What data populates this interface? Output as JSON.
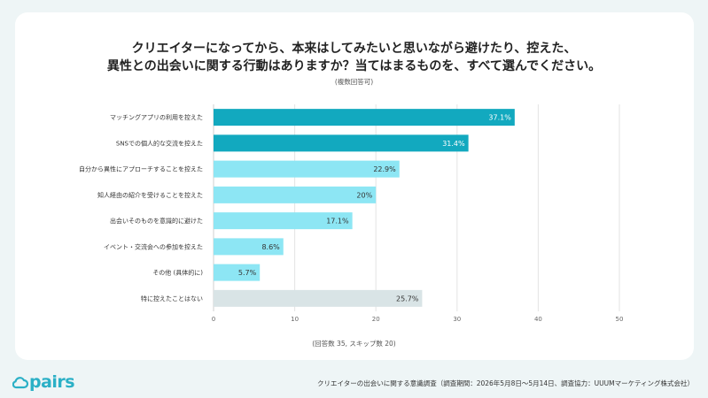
{
  "title_line1": "クリエイターになってから、本来はしてみたいと思いながら避けたり、控えた、",
  "title_line2": "異性との出会いに関する行動はありますか？当てはまるものを、すべて選んでください。",
  "subtitle": "(複数回答可)",
  "response_note": "(回答数 35, スキップ数 20)",
  "brand": "pairs",
  "footer": "クリエイターの出会いに関する意識調査（調査期間：2026年5月8日〜5月14日、調査協力：UUUMマーケティング株式会社）",
  "colors": {
    "top": "#12a9bf",
    "other": "#8de6f4",
    "none": "#d9e4e6"
  },
  "chart_data": {
    "type": "bar",
    "orientation": "horizontal",
    "categories": [
      "マッチングアプリの利用を控えた",
      "SNSでの個人的な交流を控えた",
      "自分から異性にアプローチすることを控えた",
      "知人経由の紹介を受けることを控えた",
      "出会いそのものを意識的に避けた",
      "イベント・交流会への参加を控えた",
      "その他 (具体的に)",
      "特に控えたことはない"
    ],
    "values": [
      37.1,
      31.4,
      22.9,
      20,
      17.1,
      8.6,
      5.7,
      25.7
    ],
    "value_labels": [
      "37.1%",
      "31.4%",
      "22.9%",
      "20%",
      "17.1%",
      "8.6%",
      "5.7%",
      "25.7%"
    ],
    "color_groups": [
      "top",
      "top",
      "other",
      "other",
      "other",
      "other",
      "other",
      "none"
    ],
    "xlim": [
      0,
      50
    ],
    "xticks": [
      "0",
      "10",
      "20",
      "30",
      "40",
      "50"
    ],
    "grid": true,
    "xlabel": "",
    "ylabel": ""
  }
}
